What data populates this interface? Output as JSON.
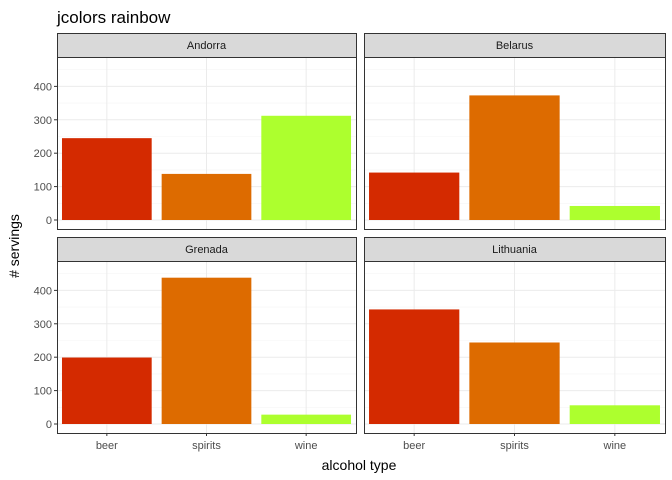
{
  "chart_data": {
    "type": "bar",
    "title": "jcolors rainbow",
    "xlabel": "alcohol type",
    "ylabel": "# servings",
    "categories": [
      "beer",
      "spirits",
      "wine"
    ],
    "colors": {
      "beer": "#D42A00",
      "spirits": "#DD6B00",
      "wine": "#ADFF2E"
    },
    "ylim": [
      0,
      470
    ],
    "yticks": [
      0,
      100,
      200,
      300,
      400
    ],
    "grid": true,
    "legend": "none",
    "facets": [
      {
        "name": "Andorra",
        "values": [
          245,
          138,
          312
        ]
      },
      {
        "name": "Belarus",
        "values": [
          142,
          373,
          42
        ]
      },
      {
        "name": "Grenada",
        "values": [
          199,
          438,
          28
        ]
      },
      {
        "name": "Lithuania",
        "values": [
          343,
          244,
          56
        ]
      }
    ]
  }
}
